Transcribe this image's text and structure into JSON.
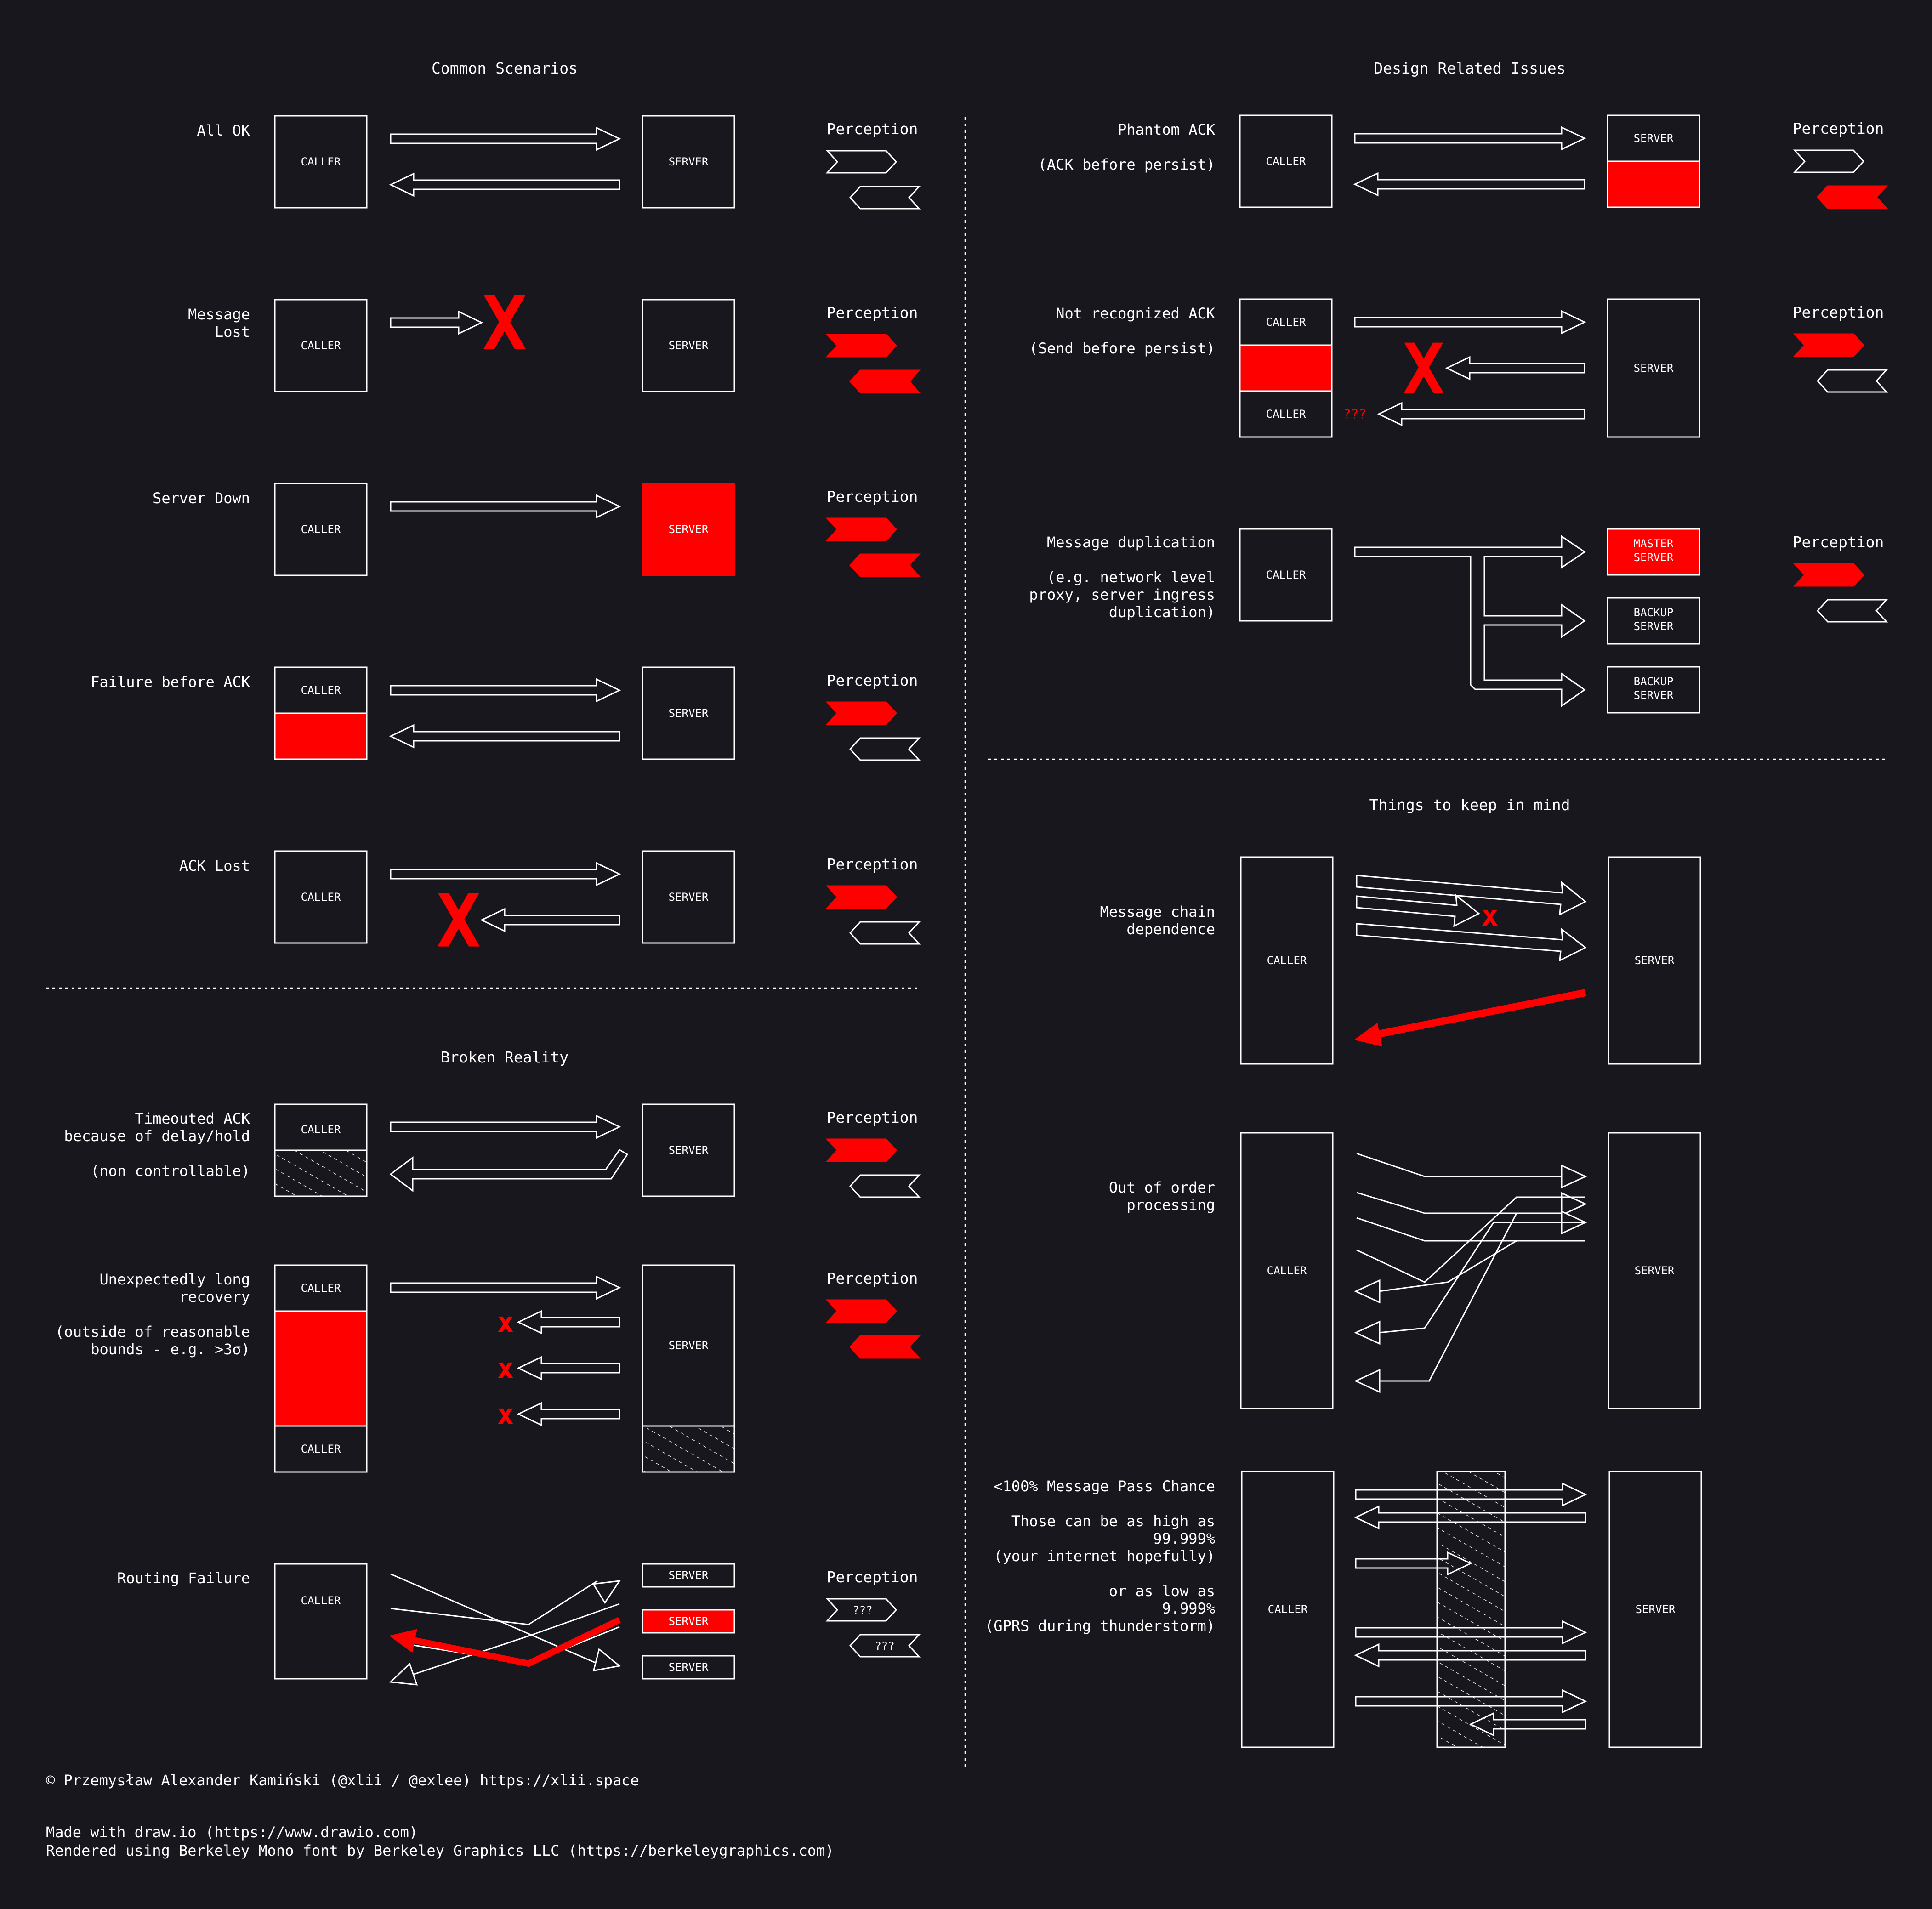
{
  "colors": {
    "background": "#18171d",
    "stroke": "#ffffff",
    "accent": "#ff0000",
    "text": "#ffffff"
  },
  "labels": {
    "caller": "CALLER",
    "server": "SERVER",
    "master_server_1": "MASTER",
    "master_server_2": "SERVER",
    "backup_1": "BACKUP",
    "backup_2": "SERVER",
    "perception": "Perception",
    "unknown": "???",
    "x": "X",
    "small_x": "x"
  },
  "sections": {
    "common": {
      "title": "Common Scenarios"
    },
    "broken": {
      "title": "Broken Reality"
    },
    "design": {
      "title": "Design Related Issues"
    },
    "mind": {
      "title": "Things to keep in mind"
    }
  },
  "scenarios": {
    "all_ok": {
      "lines": [
        "All OK"
      ]
    },
    "message_lost": {
      "lines": [
        "Message",
        "Lost"
      ]
    },
    "server_down": {
      "lines": [
        "Server Down"
      ]
    },
    "failure_before_ack": {
      "lines": [
        "Failure before ACK"
      ]
    },
    "ack_lost": {
      "lines": [
        "ACK Lost"
      ]
    },
    "timeouted_ack": {
      "lines": [
        "Timeouted ACK",
        "because of delay/hold",
        "",
        "(non controllable)"
      ]
    },
    "long_recovery": {
      "lines": [
        "Unexpectedly long",
        "recovery",
        "",
        "(outside of reasonable",
        "bounds - e.g. >3σ)"
      ]
    },
    "routing_failure": {
      "lines": [
        "Routing Failure"
      ]
    },
    "phantom_ack": {
      "lines": [
        "Phantom ACK",
        "",
        "(ACK before persist)"
      ]
    },
    "not_recognized_ack": {
      "lines": [
        "Not recognized ACK",
        "",
        "(Send before persist)"
      ]
    },
    "message_duplication": {
      "lines": [
        "Message duplication",
        "",
        "(e.g. network level",
        "proxy, server ingress",
        "duplication)"
      ]
    },
    "message_chain": {
      "lines": [
        "Message chain",
        "dependence"
      ]
    },
    "out_of_order": {
      "lines": [
        "Out of order",
        "processing"
      ]
    },
    "pass_chance": {
      "lines": [
        "<100% Message Pass Chance",
        "",
        "Those can be as high as",
        "99.999%",
        "(your internet hopefully)",
        "",
        "or as low as",
        "9.999%",
        "(GPRS during thunderstorm)"
      ]
    }
  },
  "footer": {
    "copyright": "© Przemysław Alexander Kamiński (@xlii / @exlee) https://xlii.space",
    "made_with": "Made with draw.io (https://www.drawio.com)",
    "rendered": "Rendered using Berkeley Mono font by Berkeley Graphics LLC (https://berkeleygraphics.com)"
  }
}
